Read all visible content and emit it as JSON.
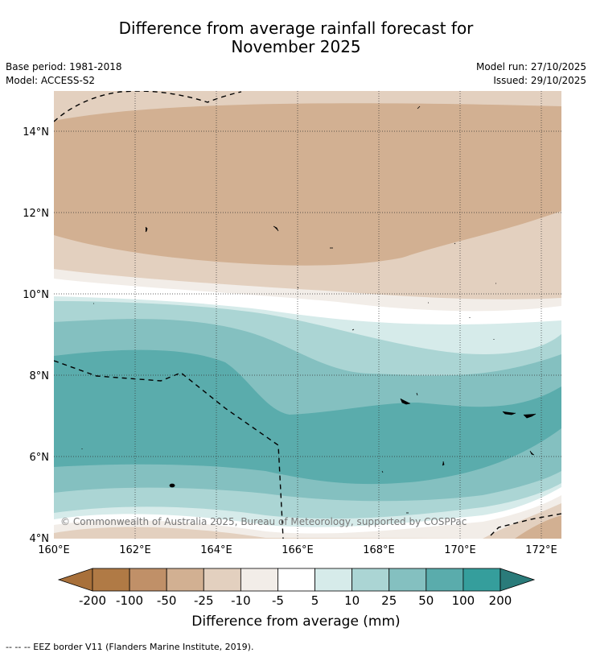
{
  "title": {
    "line1": "Difference from average rainfall forecast for",
    "line2": "November 2025"
  },
  "meta": {
    "base_period": "Base period: 1981-2018",
    "model": "Model: ACCESS-S2",
    "model_run": "Model run: 27/10/2025",
    "issued": "Issued: 29/10/2025"
  },
  "axes": {
    "lon_labels": [
      "160°E",
      "162°E",
      "164°E",
      "166°E",
      "168°E",
      "170°E",
      "172°E"
    ],
    "lat_labels": [
      "4°N",
      "6°N",
      "8°N",
      "10°N",
      "12°N",
      "14°N"
    ]
  },
  "copyright": "© Commonwealth of Australia 2025, Bureau of Meteorology, supported by COSPPac",
  "colorbar": {
    "title": "Difference from average (mm)",
    "labels": [
      "-200",
      "-100",
      "-50",
      "-25",
      "-10",
      "-5",
      "5",
      "10",
      "25",
      "50",
      "100",
      "200"
    ],
    "colors": [
      "#a8703a",
      "#b07a45",
      "#c09068",
      "#d2b092",
      "#e3d0bf",
      "#f2ede8",
      "#ffffff",
      "#d6ebea",
      "#abd5d4",
      "#84c0c0",
      "#5aacac",
      "#359e9c",
      "#2a7b7a"
    ]
  },
  "footer": "-- -- -- EEZ border V11 (Flanders Marine Institute, 2019)."
}
